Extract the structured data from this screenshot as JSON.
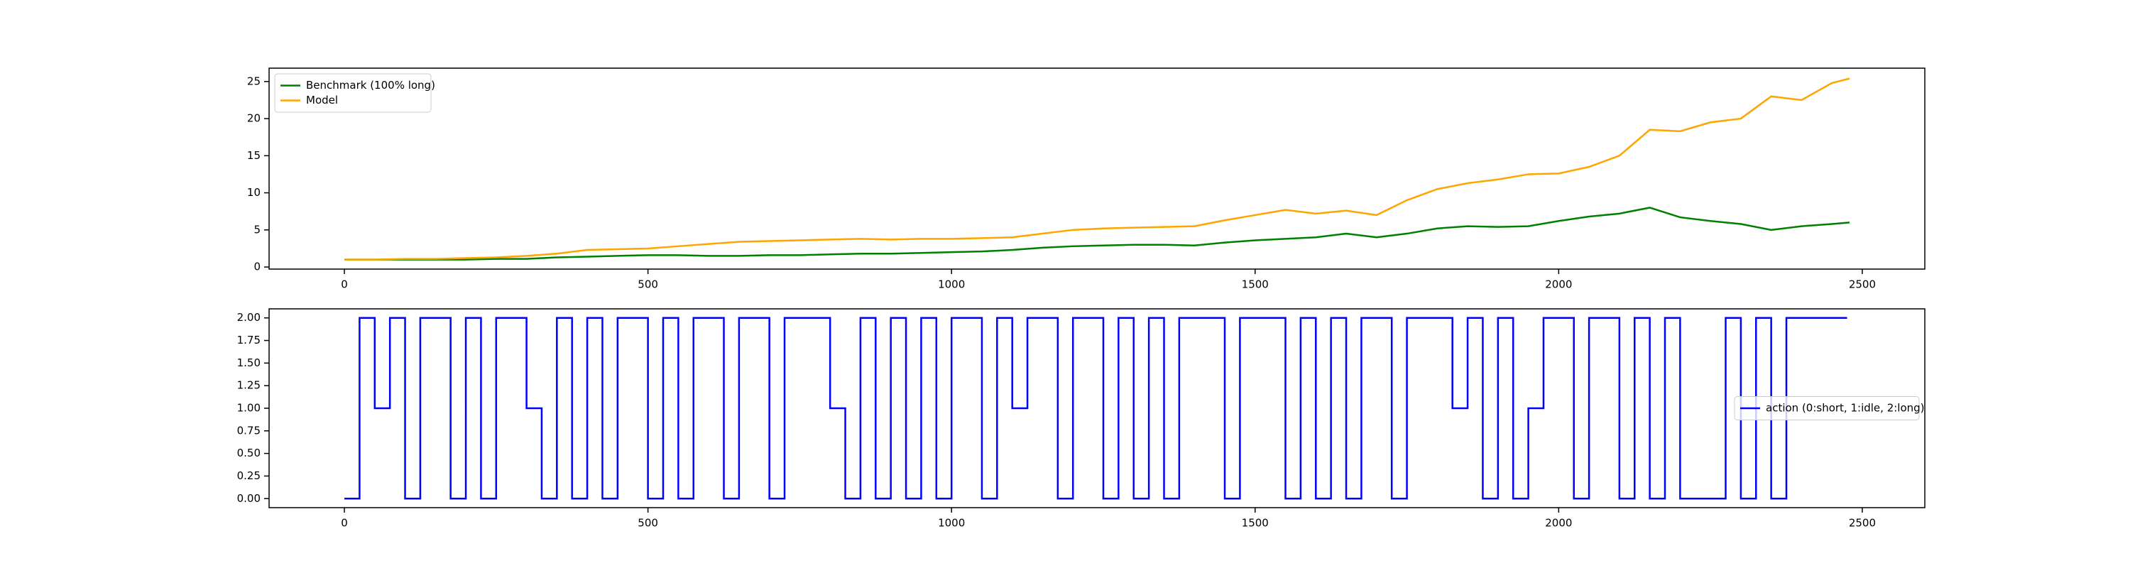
{
  "chart_data": [
    {
      "type": "line",
      "x": [
        0,
        50,
        100,
        150,
        200,
        250,
        300,
        350,
        400,
        450,
        500,
        550,
        600,
        650,
        700,
        750,
        800,
        850,
        900,
        950,
        1000,
        1050,
        1100,
        1150,
        1200,
        1250,
        1300,
        1350,
        1400,
        1450,
        1500,
        1550,
        1600,
        1650,
        1700,
        1750,
        1800,
        1850,
        1900,
        1950,
        2000,
        2050,
        2100,
        2150,
        2200,
        2250,
        2300,
        2350,
        2400,
        2450,
        2479
      ],
      "series": [
        {
          "name": "Benchmark (100% long)",
          "color": "#008000",
          "values": [
            1,
            1,
            1,
            1,
            1.0,
            1.1,
            1.1,
            1.3,
            1.4,
            1.5,
            1.6,
            1.6,
            1.5,
            1.5,
            1.6,
            1.6,
            1.7,
            1.8,
            1.8,
            1.9,
            2.0,
            2.1,
            2.3,
            2.6,
            2.8,
            2.9,
            3.0,
            3.0,
            2.9,
            3.3,
            3.6,
            3.8,
            4.0,
            4.5,
            4.0,
            4.5,
            5.2,
            5.5,
            5.4,
            5.5,
            6.2,
            6.8,
            7.2,
            8.0,
            6.7,
            6.2,
            5.8,
            5.0,
            5.5,
            5.8,
            6.0
          ]
        },
        {
          "name": "Model",
          "color": "#ffa500",
          "values": [
            1,
            1,
            1.1,
            1.1,
            1.2,
            1.3,
            1.5,
            1.8,
            2.3,
            2.4,
            2.5,
            2.8,
            3.1,
            3.4,
            3.5,
            3.6,
            3.7,
            3.8,
            3.7,
            3.8,
            3.8,
            3.9,
            4.0,
            4.5,
            5.0,
            5.2,
            5.3,
            5.4,
            5.5,
            6.3,
            7.0,
            7.7,
            7.2,
            7.6,
            7.0,
            9.0,
            10.5,
            11.3,
            11.8,
            12.5,
            12.6,
            13.5,
            15.0,
            18.5,
            18.3,
            19.5,
            20.0,
            23.0,
            22.5,
            24.8,
            25.4
          ]
        }
      ],
      "xlim": [
        -124,
        2603
      ],
      "ylim": [
        -0.28,
        26.8
      ],
      "xticks": [
        0,
        500,
        1000,
        1500,
        2000,
        2500
      ],
      "yticks": [
        0,
        5,
        10,
        15,
        20,
        25
      ],
      "legend": "upper left"
    },
    {
      "type": "step",
      "x": [
        0,
        25,
        50,
        75,
        100,
        125,
        150,
        175,
        200,
        225,
        250,
        275,
        300,
        325,
        350,
        375,
        400,
        425,
        450,
        475,
        500,
        525,
        550,
        575,
        600,
        625,
        650,
        675,
        700,
        725,
        750,
        775,
        800,
        825,
        850,
        875,
        900,
        925,
        950,
        975,
        1000,
        1025,
        1050,
        1075,
        1100,
        1125,
        1150,
        1175,
        1200,
        1225,
        1250,
        1275,
        1300,
        1325,
        1350,
        1375,
        1400,
        1425,
        1450,
        1475,
        1500,
        1525,
        1550,
        1575,
        1600,
        1625,
        1650,
        1675,
        1700,
        1725,
        1750,
        1775,
        1800,
        1825,
        1850,
        1875,
        1900,
        1925,
        1950,
        1975,
        2000,
        2025,
        2050,
        2075,
        2100,
        2125,
        2150,
        2175,
        2200,
        2225,
        2250,
        2275,
        2300,
        2325,
        2350,
        2375,
        2400,
        2425,
        2450,
        2475
      ],
      "series": [
        {
          "name": "action (0:short, 1:idle, 2:long)",
          "color": "#0000ff",
          "values": [
            0,
            2,
            1,
            2,
            0,
            2,
            2,
            0,
            2,
            0,
            2,
            2,
            1,
            0,
            2,
            0,
            2,
            0,
            2,
            2,
            0,
            2,
            0,
            2,
            2,
            0,
            2,
            2,
            0,
            2,
            2,
            2,
            1,
            0,
            2,
            0,
            2,
            0,
            2,
            0,
            2,
            2,
            0,
            2,
            1,
            2,
            2,
            0,
            2,
            2,
            0,
            2,
            0,
            2,
            0,
            2,
            2,
            2,
            0,
            2,
            2,
            2,
            0,
            2,
            0,
            2,
            0,
            2,
            2,
            0,
            2,
            2,
            2,
            1,
            2,
            0,
            2,
            0,
            1,
            2,
            2,
            0,
            2,
            2,
            0,
            2,
            0,
            2,
            0,
            0,
            0,
            2,
            0,
            2,
            0,
            2,
            2,
            2,
            2,
            2
          ]
        }
      ],
      "xlim": [
        -124,
        2603
      ],
      "ylim": [
        -0.1,
        2.1
      ],
      "xticks": [
        0,
        500,
        1000,
        1500,
        2000,
        2500
      ],
      "yticks": [
        {
          "value": 0,
          "label": "0.00"
        },
        0.25,
        {
          "value": 0.5,
          "label": "0.50"
        },
        0.75,
        {
          "value": 1,
          "label": "1.00"
        },
        1.25,
        {
          "value": 1.5,
          "label": "1.50"
        },
        1.75,
        {
          "value": 2,
          "label": "2.00"
        }
      ],
      "legend": "center right"
    }
  ]
}
